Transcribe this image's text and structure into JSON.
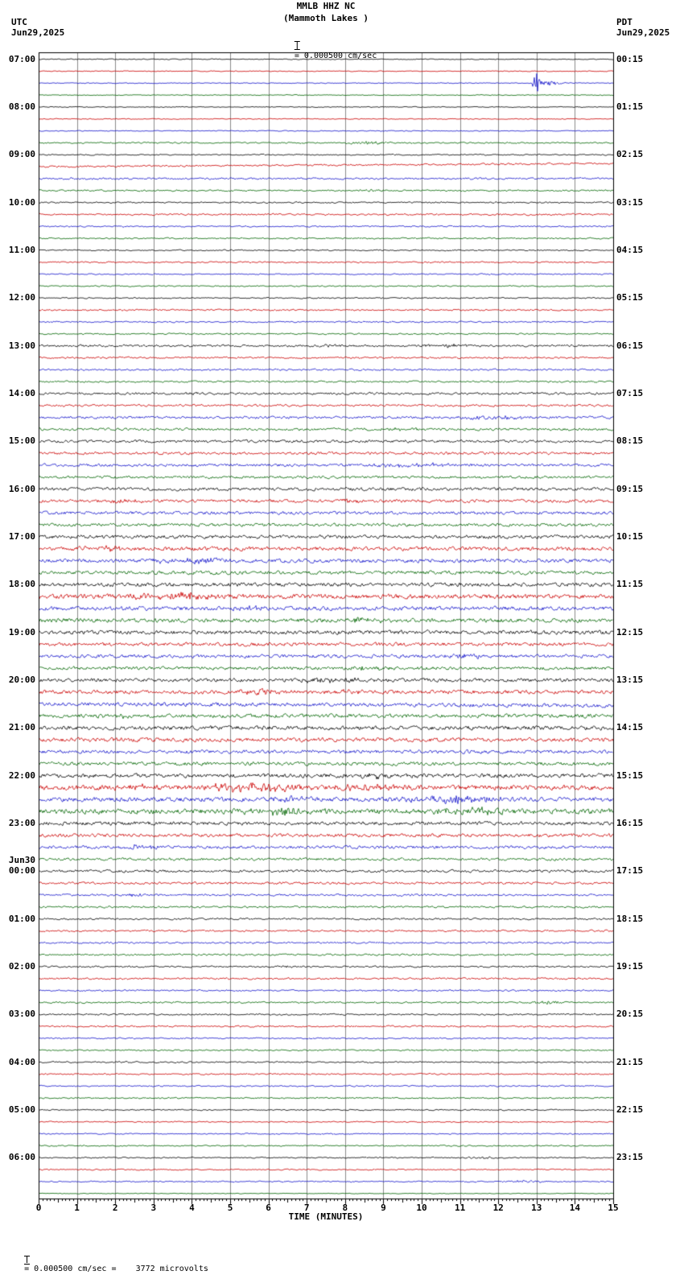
{
  "header": {
    "title": "MMLB HHZ NC",
    "subtitle": "(Mammoth Lakes )",
    "left_tz": "UTC",
    "left_date": "Jun29,2025",
    "right_tz": "PDT",
    "right_date": "Jun29,2025",
    "scale_label": "= 0.000500 cm/sec"
  },
  "footer": {
    "scale_note": "= 0.000500 cm/sec =    3772 microvolts"
  },
  "chart_data": {
    "type": "line",
    "title": "MMLB HHZ NC",
    "subtitle": "(Mammoth Lakes )",
    "xlabel": "TIME (MINUTES)",
    "x_range": [
      0,
      15
    ],
    "x_ticks": [
      0,
      1,
      2,
      3,
      4,
      5,
      6,
      7,
      8,
      9,
      10,
      11,
      12,
      13,
      14,
      15
    ],
    "minutes_per_row": 15,
    "rows_per_hour": 4,
    "num_rows": 96,
    "trace_colors": [
      "#000000",
      "#cc0000",
      "#1414cc",
      "#006400"
    ],
    "grid_color": "#8a8a8a",
    "row_amplitudes": [
      0.5,
      0.5,
      0.5,
      0.5,
      0.5,
      0.5,
      0.5,
      0.8,
      0.7,
      1.0,
      1.1,
      0.9,
      0.8,
      1.0,
      0.8,
      0.8,
      0.7,
      0.8,
      0.7,
      0.7,
      0.7,
      0.9,
      0.8,
      0.8,
      1.2,
      1.0,
      1.0,
      1.0,
      1.3,
      1.2,
      1.4,
      1.4,
      1.5,
      1.5,
      1.6,
      1.5,
      1.8,
      1.8,
      1.8,
      1.7,
      2.0,
      2.2,
      2.2,
      2.0,
      2.2,
      2.6,
      2.3,
      2.3,
      2.2,
      2.0,
      1.9,
      1.8,
      2.0,
      2.2,
      2.2,
      2.2,
      2.3,
      2.3,
      2.0,
      2.0,
      2.3,
      2.8,
      2.5,
      2.8,
      2.0,
      1.9,
      1.7,
      1.5,
      1.5,
      1.3,
      1.2,
      1.1,
      1.0,
      1.0,
      1.0,
      1.0,
      0.9,
      1.0,
      0.9,
      0.9,
      0.9,
      0.9,
      0.8,
      0.8,
      0.8,
      0.8,
      0.8,
      0.8,
      0.7,
      0.7,
      0.7,
      0.7,
      0.7,
      0.7,
      0.7,
      0.4
    ],
    "row_slopes": {
      "9": -4,
      "54": 2
    },
    "hour_rows": [
      {
        "row": 0,
        "utc": "07:00",
        "pdt": "00:15"
      },
      {
        "row": 4,
        "utc": "08:00",
        "pdt": "01:15"
      },
      {
        "row": 8,
        "utc": "09:00",
        "pdt": "02:15"
      },
      {
        "row": 12,
        "utc": "10:00",
        "pdt": "03:15"
      },
      {
        "row": 16,
        "utc": "11:00",
        "pdt": "04:15"
      },
      {
        "row": 20,
        "utc": "12:00",
        "pdt": "05:15"
      },
      {
        "row": 24,
        "utc": "13:00",
        "pdt": "06:15"
      },
      {
        "row": 28,
        "utc": "14:00",
        "pdt": "07:15"
      },
      {
        "row": 32,
        "utc": "15:00",
        "pdt": "08:15"
      },
      {
        "row": 36,
        "utc": "16:00",
        "pdt": "09:15"
      },
      {
        "row": 40,
        "utc": "17:00",
        "pdt": "10:15"
      },
      {
        "row": 44,
        "utc": "18:00",
        "pdt": "11:15"
      },
      {
        "row": 48,
        "utc": "19:00",
        "pdt": "12:15"
      },
      {
        "row": 52,
        "utc": "20:00",
        "pdt": "13:15"
      },
      {
        "row": 56,
        "utc": "21:00",
        "pdt": "14:15"
      },
      {
        "row": 60,
        "utc": "22:00",
        "pdt": "15:15"
      },
      {
        "row": 64,
        "utc": "23:00",
        "pdt": "16:15"
      },
      {
        "row": 68,
        "utc": "00:00",
        "pdt": "17:15",
        "extra": "Jun30"
      },
      {
        "row": 72,
        "utc": "01:00",
        "pdt": "18:15"
      },
      {
        "row": 76,
        "utc": "02:00",
        "pdt": "19:15"
      },
      {
        "row": 80,
        "utc": "03:00",
        "pdt": "20:15"
      },
      {
        "row": 84,
        "utc": "04:00",
        "pdt": "21:15"
      },
      {
        "row": 88,
        "utc": "05:00",
        "pdt": "22:15"
      },
      {
        "row": 92,
        "utc": "06:00",
        "pdt": "23:15"
      }
    ],
    "events": [
      {
        "row": 2,
        "t": 13.0,
        "amp": 14,
        "w": 0.06
      },
      {
        "row": 2,
        "t": 13.3,
        "amp": 2.5,
        "w": 0.3
      },
      {
        "row": 7,
        "t": 8.6,
        "amp": 1.2,
        "w": 0.5
      },
      {
        "row": 11,
        "t": 8.8,
        "amp": 0.8,
        "w": 0.4
      },
      {
        "row": 24,
        "t": 10.6,
        "amp": 1.6,
        "w": 0.5
      },
      {
        "row": 24,
        "t": 7.6,
        "amp": 1.0,
        "w": 0.3
      },
      {
        "row": 28,
        "t": 4.1,
        "amp": 1.8,
        "w": 0.3
      },
      {
        "row": 30,
        "t": 12.0,
        "amp": 1.6,
        "w": 0.8
      },
      {
        "row": 31,
        "t": 9.5,
        "amp": 1.2,
        "w": 0.5
      },
      {
        "row": 34,
        "t": 9.8,
        "amp": 2.0,
        "w": 0.7
      },
      {
        "row": 37,
        "t": 2.2,
        "amp": 1.5,
        "w": 0.4
      },
      {
        "row": 37,
        "t": 8.2,
        "amp": 1.5,
        "w": 0.4
      },
      {
        "row": 41,
        "t": 1.6,
        "amp": 2.0,
        "w": 0.5
      },
      {
        "row": 42,
        "t": 4.0,
        "amp": 3.0,
        "w": 0.6
      },
      {
        "row": 42,
        "t": 3.3,
        "amp": 1.5,
        "w": 0.3
      },
      {
        "row": 45,
        "t": 3.7,
        "amp": 4.0,
        "w": 0.8
      },
      {
        "row": 45,
        "t": 2.8,
        "amp": 2.0,
        "w": 0.4
      },
      {
        "row": 46,
        "t": 5.7,
        "amp": 1.8,
        "w": 0.4
      },
      {
        "row": 47,
        "t": 8.5,
        "amp": 2.0,
        "w": 0.4
      },
      {
        "row": 50,
        "t": 11.2,
        "amp": 2.0,
        "w": 0.4
      },
      {
        "row": 51,
        "t": 8.6,
        "amp": 1.8,
        "w": 0.3
      },
      {
        "row": 52,
        "t": 7.6,
        "amp": 2.0,
        "w": 0.6
      },
      {
        "row": 53,
        "t": 5.8,
        "amp": 2.8,
        "w": 0.4
      },
      {
        "row": 53,
        "t": 8.0,
        "amp": 1.5,
        "w": 0.3
      },
      {
        "row": 55,
        "t": 2.0,
        "amp": 1.5,
        "w": 0.3
      },
      {
        "row": 60,
        "t": 9.0,
        "amp": 2.0,
        "w": 0.6
      },
      {
        "row": 61,
        "t": 5.6,
        "amp": 4.0,
        "w": 0.8
      },
      {
        "row": 61,
        "t": 8.5,
        "amp": 3.5,
        "w": 0.6
      },
      {
        "row": 61,
        "t": 2.5,
        "amp": 2.0,
        "w": 0.4
      },
      {
        "row": 62,
        "t": 6.6,
        "amp": 2.5,
        "w": 0.3
      },
      {
        "row": 62,
        "t": 10.8,
        "amp": 3.0,
        "w": 0.9
      },
      {
        "row": 63,
        "t": 6.3,
        "amp": 3.5,
        "w": 0.7
      },
      {
        "row": 63,
        "t": 11.3,
        "amp": 3.5,
        "w": 0.6
      },
      {
        "row": 66,
        "t": 2.6,
        "amp": 2.2,
        "w": 0.35
      },
      {
        "row": 70,
        "t": 2.5,
        "amp": 1.2,
        "w": 0.4
      },
      {
        "row": 76,
        "t": 6.6,
        "amp": 1.2,
        "w": 0.3
      },
      {
        "row": 79,
        "t": 13.2,
        "amp": 1.8,
        "w": 0.3
      },
      {
        "row": 92,
        "t": 11.5,
        "amp": 0.9,
        "w": 0.5
      },
      {
        "row": 94,
        "t": 12.8,
        "amp": 1.5,
        "w": 0.35
      }
    ]
  }
}
